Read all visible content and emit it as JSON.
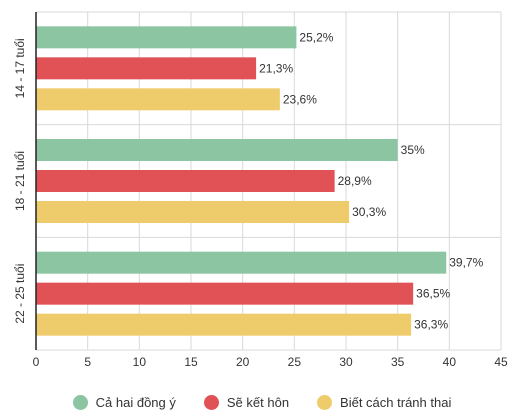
{
  "chart_data": {
    "type": "bar",
    "orientation": "horizontal",
    "categories": [
      "14 - 17 tuổi",
      "18 - 21 tuổi",
      "22 - 25 tuổi"
    ],
    "series": [
      {
        "name": "Cả hai đồng ý",
        "color": "#8cc5a1",
        "values": [
          25.2,
          35,
          39.7
        ],
        "labels": [
          "25,2%",
          "35%",
          "39,7%"
        ]
      },
      {
        "name": "Sẽ kết hôn",
        "color": "#e05256",
        "values": [
          21.3,
          28.9,
          36.5
        ],
        "labels": [
          "21,3%",
          "28,9%",
          "36,5%"
        ]
      },
      {
        "name": "Biết cách tránh thai",
        "color": "#efcc6b",
        "values": [
          23.6,
          30.3,
          36.3
        ],
        "labels": [
          "23,6%",
          "30,3%",
          "36,3%"
        ]
      }
    ],
    "xlim": [
      0,
      45
    ],
    "xticks": [
      0,
      5,
      10,
      15,
      20,
      25,
      30,
      35,
      40,
      45
    ],
    "grid": true,
    "legend_position": "bottom",
    "title": "",
    "xlabel": "",
    "ylabel": ""
  }
}
